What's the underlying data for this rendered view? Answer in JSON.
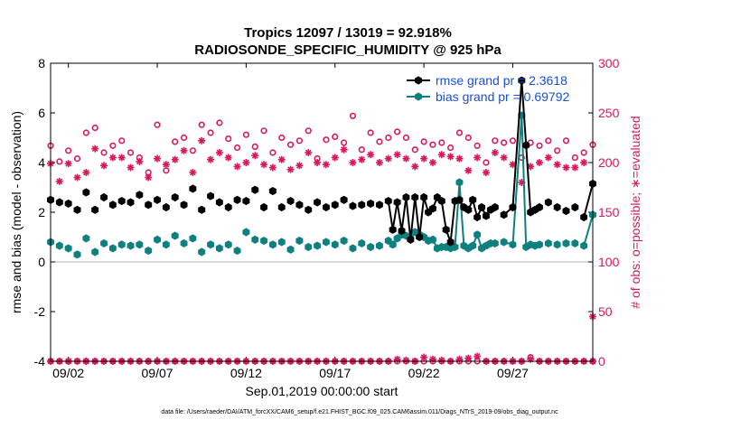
{
  "chart_data": {
    "type": "line",
    "title_line1": "Tropics 12097 / 13019 = 92.918%",
    "title_line2": "RADIOSONDE_SPECIFIC_HUMIDITY @ 925 hPa",
    "ylabel": "rmse and bias (model - observation)",
    "y2label": "# of obs: o=possible; ∗=evaluated",
    "xlabel": "Sep.01,2019 00:00:00 start",
    "footer": "data file: /Users/raeder/DAI/ATM_forcXX/CAM6_setup/f.e21.FHIST_BGC.f09_025.CAM6assim.011/Diags_NTrS_2019-09/obs_diag_output.nc",
    "xlim": [
      1.0,
      31.5
    ],
    "ylim": [
      -4,
      8
    ],
    "y2lim": [
      0,
      300
    ],
    "grid": false,
    "legend_position": "top-right",
    "xticks": [
      2,
      7,
      12,
      17,
      22,
      27
    ],
    "xtick_labels": [
      "09/02",
      "09/07",
      "09/12",
      "09/17",
      "09/22",
      "09/27"
    ],
    "yticks": [
      -4,
      -2,
      0,
      2,
      4,
      6,
      8
    ],
    "ytick_labels": [
      "-4",
      "-2",
      "0",
      "2",
      "4",
      "6",
      "8"
    ],
    "y2ticks": [
      0,
      50,
      100,
      150,
      200,
      250,
      300
    ],
    "y2tick_labels": [
      "0",
      "50",
      "100",
      "150",
      "200",
      "250",
      "300"
    ],
    "colors": {
      "rmse": "#000000",
      "bias": "#0f8080",
      "obs": "#d9175c",
      "legend_text": "#1a4fd6",
      "zero_line": "#b0b0b0"
    },
    "series": [
      {
        "name": "rmse grand pr = 2.3618",
        "axis": "left",
        "x": [
          1.0,
          1.5,
          2.0,
          2.5,
          3.0,
          3.5,
          4.0,
          4.5,
          5.0,
          5.5,
          6.0,
          6.5,
          7.0,
          7.5,
          8.0,
          8.5,
          9.0,
          9.5,
          10.0,
          10.5,
          11.0,
          11.5,
          12.0,
          12.5,
          13.0,
          13.5,
          14.0,
          14.5,
          15.0,
          15.5,
          16.0,
          16.5,
          17.0,
          17.5,
          18.0,
          18.5,
          19.0,
          19.5,
          20.0,
          20.25,
          20.5,
          20.75,
          21.0,
          21.25,
          21.5,
          21.75,
          22.0,
          22.25,
          22.5,
          22.75,
          23.0,
          23.25,
          23.5,
          23.75,
          24.0,
          24.25,
          24.5,
          24.75,
          25.0,
          25.25,
          25.5,
          25.75,
          26.0,
          26.5,
          27.0,
          27.5,
          27.75,
          28.0,
          28.25,
          28.5,
          29.0,
          29.5,
          30.0,
          30.5,
          31.0,
          31.5
        ],
        "values": [
          2.5,
          2.4,
          2.35,
          2.1,
          2.8,
          2.1,
          2.6,
          2.3,
          2.45,
          2.4,
          2.7,
          2.3,
          2.5,
          2.2,
          2.6,
          2.3,
          2.95,
          2.1,
          2.65,
          2.4,
          2.2,
          2.5,
          2.45,
          2.9,
          2.2,
          2.85,
          2.2,
          2.45,
          2.3,
          2.1,
          2.4,
          2.2,
          2.3,
          2.5,
          2.25,
          2.3,
          2.35,
          2.3,
          2.45,
          1.3,
          2.4,
          1.25,
          2.6,
          0.9,
          2.6,
          1.0,
          2.6,
          2.0,
          2.15,
          2.6,
          2.45,
          1.3,
          0.8,
          2.45,
          2.5,
          2.2,
          2.1,
          2.5,
          1.8,
          2.2,
          1.85,
          2.1,
          2.2,
          1.9,
          2.2,
          7.3,
          4.7,
          2.0,
          2.1,
          2.2,
          2.4,
          2.2,
          2.05,
          2.2,
          1.8,
          3.15
        ]
      },
      {
        "name": "bias grand pr = 0.69792",
        "axis": "left",
        "x": [
          1.0,
          1.5,
          2.0,
          2.5,
          3.0,
          3.5,
          4.0,
          4.5,
          5.0,
          5.5,
          6.0,
          6.5,
          7.0,
          7.5,
          8.0,
          8.5,
          9.0,
          9.5,
          10.0,
          10.5,
          11.0,
          11.5,
          12.0,
          12.5,
          13.0,
          13.5,
          14.0,
          14.5,
          15.0,
          15.5,
          16.0,
          16.5,
          17.0,
          17.5,
          18.0,
          18.5,
          19.0,
          19.5,
          20.0,
          20.25,
          20.5,
          20.75,
          21.0,
          21.25,
          21.5,
          21.75,
          22.0,
          22.25,
          22.5,
          22.75,
          23.0,
          23.25,
          23.5,
          23.75,
          24.0,
          24.25,
          24.5,
          24.75,
          25.0,
          25.25,
          25.5,
          25.75,
          26.0,
          26.5,
          27.0,
          27.5,
          27.75,
          28.0,
          28.25,
          28.5,
          29.0,
          29.5,
          30.0,
          30.5,
          31.0,
          31.5
        ],
        "values": [
          0.8,
          0.65,
          0.55,
          0.3,
          0.95,
          0.4,
          0.75,
          0.55,
          0.7,
          0.65,
          0.7,
          0.45,
          0.9,
          0.7,
          1.05,
          0.75,
          0.95,
          0.4,
          0.7,
          0.55,
          0.7,
          0.45,
          1.2,
          0.9,
          0.85,
          0.7,
          0.8,
          0.5,
          0.85,
          0.6,
          0.65,
          0.8,
          0.7,
          0.85,
          0.55,
          0.75,
          0.6,
          0.65,
          0.85,
          0.7,
          0.95,
          1.1,
          1.05,
          0.95,
          1.2,
          1.1,
          1.0,
          0.85,
          0.9,
          0.55,
          0.6,
          0.6,
          0.55,
          0.6,
          3.2,
          0.65,
          0.55,
          0.65,
          1.1,
          0.55,
          0.65,
          0.75,
          0.75,
          0.8,
          0.7,
          5.9,
          0.6,
          0.7,
          0.65,
          0.7,
          0.75,
          0.7,
          0.75,
          0.75,
          0.65,
          1.9
        ]
      },
      {
        "name": "obs possible",
        "axis": "right",
        "x": [
          1.0,
          1.5,
          2.0,
          2.5,
          3.0,
          3.5,
          4.0,
          4.5,
          5.0,
          5.5,
          6.0,
          6.5,
          7.0,
          7.5,
          8.0,
          8.5,
          9.0,
          9.5,
          10.0,
          10.5,
          11.0,
          11.5,
          12.0,
          12.5,
          13.0,
          13.5,
          14.0,
          14.5,
          15.0,
          15.5,
          16.0,
          16.5,
          17.0,
          17.5,
          18.0,
          18.5,
          19.0,
          19.5,
          20.0,
          20.5,
          21.0,
          21.5,
          22.0,
          22.5,
          23.0,
          23.5,
          24.0,
          24.5,
          25.0,
          25.5,
          26.0,
          26.5,
          27.0,
          27.5,
          28.0,
          28.5,
          29.0,
          29.5,
          30.0,
          30.5,
          31.0,
          31.5
        ],
        "values": [
          217,
          201,
          212,
          204,
          230,
          235,
          210,
          217,
          222,
          210,
          205,
          190,
          238,
          192,
          221,
          225,
          212,
          238,
          230,
          240,
          224,
          215,
          228,
          216,
          232,
          210,
          225,
          218,
          222,
          232,
          204,
          223,
          226,
          220,
          247,
          213,
          230,
          221,
          225,
          231,
          225,
          213,
          221,
          218,
          220,
          215,
          230,
          225,
          217,
          200,
          222,
          220,
          222,
          205,
          220,
          217,
          222,
          212,
          222,
          205,
          210,
          218
        ]
      },
      {
        "name": "obs evaluated",
        "axis": "right",
        "x": [
          1.0,
          1.5,
          2.0,
          2.5,
          3.0,
          3.5,
          4.0,
          4.5,
          5.0,
          5.5,
          6.0,
          6.5,
          7.0,
          7.5,
          8.0,
          8.5,
          9.0,
          9.5,
          10.0,
          10.5,
          11.0,
          11.5,
          12.0,
          12.5,
          13.0,
          13.5,
          14.0,
          14.5,
          15.0,
          15.5,
          16.0,
          16.5,
          17.0,
          17.5,
          18.0,
          18.5,
          19.0,
          19.5,
          20.0,
          20.5,
          21.0,
          21.5,
          22.0,
          22.5,
          23.0,
          23.5,
          24.0,
          24.5,
          25.0,
          25.5,
          26.0,
          26.5,
          27.0,
          27.5,
          28.0,
          28.5,
          29.0,
          29.5,
          30.0,
          30.5,
          31.0,
          31.5
        ],
        "values": [
          199,
          181,
          199,
          185,
          190,
          214,
          197,
          205,
          205,
          195,
          201,
          185,
          204,
          198,
          203,
          212,
          190,
          222,
          203,
          210,
          205,
          196,
          200,
          207,
          198,
          195,
          203,
          193,
          197,
          210,
          200,
          198,
          205,
          213,
          200,
          203,
          208,
          200,
          204,
          208,
          204,
          196,
          204,
          200,
          208,
          206,
          204,
          192,
          205,
          190,
          210,
          205,
          198,
          180,
          196,
          200,
          205,
          198,
          195,
          195,
          200,
          45
        ]
      },
      {
        "name": "zero-level possible",
        "axis": "right",
        "x": [
          1.0,
          1.5,
          2.0,
          2.5,
          3.0,
          3.5,
          4.0,
          4.5,
          5.0,
          5.5,
          6.0,
          6.5,
          7.0,
          7.5,
          8.0,
          8.5,
          9.0,
          9.5,
          10.0,
          10.5,
          11.0,
          11.5,
          12.0,
          12.5,
          13.0,
          13.5,
          14.0,
          14.5,
          15.0,
          15.5,
          16.0,
          16.5,
          17.0,
          17.5,
          18.0,
          18.5,
          19.0,
          19.5,
          20.0,
          20.5,
          21.0,
          21.5,
          22.0,
          22.5,
          23.0,
          23.5,
          24.0,
          24.5,
          25.0,
          25.5,
          26.0,
          26.5,
          27.0,
          27.5,
          28.0,
          28.5,
          29.0,
          29.5,
          30.0,
          30.5,
          31.0,
          31.5
        ],
        "values": [
          0,
          0,
          0,
          0,
          0,
          0,
          0,
          0,
          0,
          0,
          0,
          0,
          0,
          0,
          0,
          0,
          0,
          0,
          0,
          0,
          0,
          0,
          0,
          0,
          0,
          0,
          0,
          0,
          0,
          0,
          0,
          0,
          0,
          0,
          0,
          0,
          0,
          0,
          0,
          0,
          0,
          0,
          0,
          0,
          0,
          0,
          0,
          0,
          0,
          0,
          0,
          0,
          0,
          0,
          4,
          0,
          0,
          0,
          0,
          0,
          0,
          0
        ]
      },
      {
        "name": "zero-level evaluated",
        "axis": "right",
        "x": [
          1.0,
          1.5,
          2.0,
          2.5,
          3.0,
          3.5,
          4.0,
          4.5,
          5.0,
          5.5,
          6.0,
          6.5,
          7.0,
          7.5,
          8.0,
          8.5,
          9.0,
          9.5,
          10.0,
          10.5,
          11.0,
          11.5,
          12.0,
          12.5,
          13.0,
          13.5,
          14.0,
          14.5,
          15.0,
          15.5,
          16.0,
          16.5,
          17.0,
          17.5,
          18.0,
          18.5,
          19.0,
          19.5,
          20.0,
          20.5,
          21.0,
          21.5,
          22.0,
          22.5,
          23.0,
          23.5,
          24.0,
          24.5,
          25.0,
          25.5,
          26.0,
          26.5,
          27.0,
          27.5,
          28.0,
          28.5,
          29.0,
          29.5,
          30.0,
          30.5,
          31.0,
          31.5
        ],
        "values": [
          0,
          0,
          0,
          0,
          0,
          0,
          0,
          0,
          0,
          0,
          0,
          0,
          0,
          0,
          0,
          0,
          0,
          0,
          0,
          0,
          0,
          0,
          0,
          0,
          0,
          0,
          0,
          0,
          0,
          0,
          0,
          0,
          0,
          0,
          0,
          0,
          0,
          0,
          0,
          2,
          1,
          0,
          4,
          2,
          1,
          0,
          2,
          3,
          5,
          0,
          0,
          0,
          0,
          0,
          2,
          0,
          0,
          0,
          0,
          0,
          0,
          0
        ]
      }
    ]
  }
}
